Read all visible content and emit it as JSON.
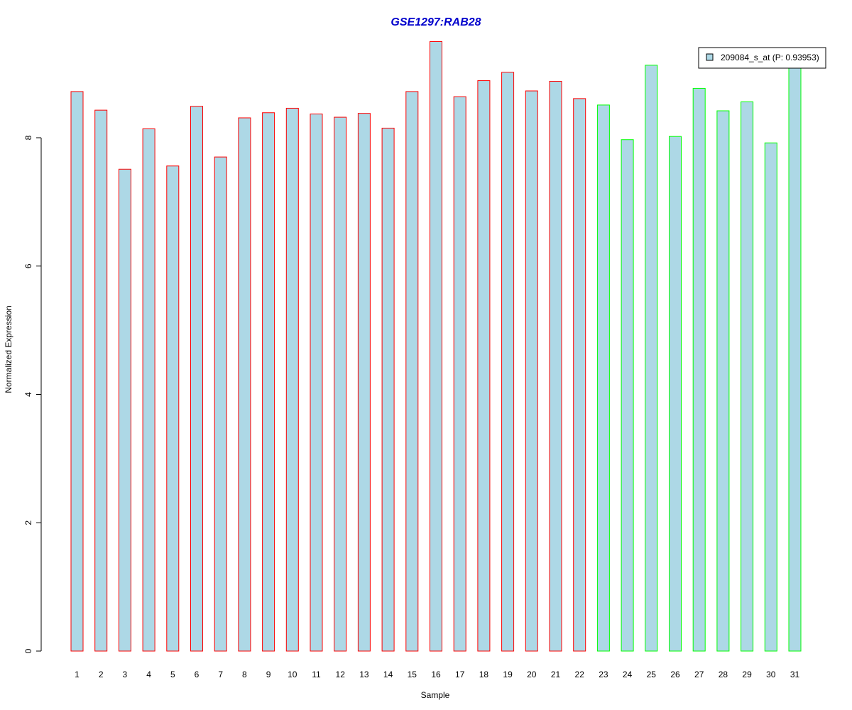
{
  "chart_data": {
    "type": "bar",
    "title": "GSE1297:RAB28",
    "title_color": "#0000CC",
    "xlabel": "Sample",
    "ylabel": "Normalized Expression",
    "ylim": [
      0,
      9.5
    ],
    "yticks": [
      0,
      2,
      4,
      6,
      8
    ],
    "grid": false,
    "categories": [
      "1",
      "2",
      "3",
      "4",
      "5",
      "6",
      "7",
      "8",
      "9",
      "10",
      "11",
      "12",
      "13",
      "14",
      "15",
      "16",
      "17",
      "18",
      "19",
      "20",
      "21",
      "22",
      "23",
      "24",
      "25",
      "26",
      "27",
      "28",
      "29",
      "30",
      "31"
    ],
    "series": [
      {
        "name": "209084_s_at (P: 0.93953)",
        "fill": "#ADD8E6",
        "values": [
          8.72,
          8.43,
          7.51,
          8.14,
          7.56,
          8.49,
          7.7,
          8.31,
          8.39,
          8.46,
          8.37,
          8.32,
          8.38,
          8.15,
          8.72,
          9.5,
          8.64,
          8.89,
          9.02,
          8.73,
          8.88,
          8.61,
          8.51,
          7.97,
          9.13,
          8.02,
          8.77,
          8.42,
          8.56,
          7.92,
          9.2
        ]
      }
    ],
    "border_colors": [
      "#FF0000",
      "#FF0000",
      "#FF0000",
      "#FF0000",
      "#FF0000",
      "#FF0000",
      "#FF0000",
      "#FF0000",
      "#FF0000",
      "#FF0000",
      "#FF0000",
      "#FF0000",
      "#FF0000",
      "#FF0000",
      "#FF0000",
      "#FF0000",
      "#FF0000",
      "#FF0000",
      "#FF0000",
      "#FF0000",
      "#FF0000",
      "#FF0000",
      "#00FF00",
      "#00FF00",
      "#00FF00",
      "#00FF00",
      "#00FF00",
      "#00FF00",
      "#00FF00",
      "#00FF00",
      "#00FF00"
    ],
    "legend": {
      "position": "top-right",
      "label": "209084_s_at (P: 0.93953)"
    }
  }
}
